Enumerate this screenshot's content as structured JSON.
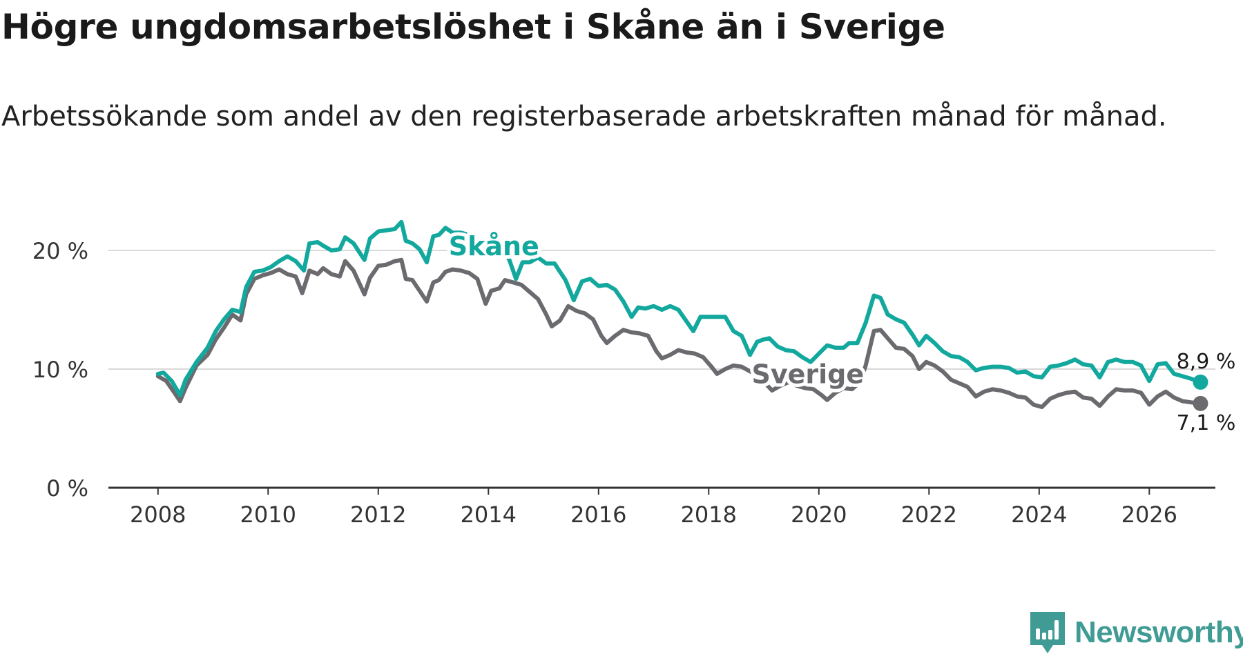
{
  "title": "Högre ungdomsarbetslöshet i Skåne än i Sverige",
  "subtitle": "Arbetssökande som andel av den registerbaserade arbetskraften månad för månad.",
  "brand": {
    "name": "Newsworthy",
    "color": "#3f9b94",
    "icon": "newsworthy-logo-icon"
  },
  "chart_data": {
    "type": "line",
    "title": "Högre ungdomsarbetslöshet i Skåne än i Sverige",
    "xlabel": "",
    "ylabel": "",
    "xlim": [
      2007.1,
      2027.2
    ],
    "ylim": [
      0,
      22.5
    ],
    "x_ticks": [
      2008,
      2010,
      2012,
      2014,
      2016,
      2018,
      2020,
      2022,
      2024,
      2026
    ],
    "x_tick_labels": [
      "2008",
      "2010",
      "2012",
      "2014",
      "2016",
      "2018",
      "2020",
      "2022",
      "2024",
      "2026"
    ],
    "y_ticks": [
      0,
      10,
      20
    ],
    "y_tick_labels": [
      "0 %",
      "10 %",
      "20 %"
    ],
    "grid": true,
    "series": [
      {
        "name": "Skåne",
        "color": "#13a89e",
        "label_x": 2014.1,
        "label_y": 20.3,
        "end_label": "8,9 %",
        "points": [
          [
            2008.0,
            9.6
          ],
          [
            2008.1,
            9.7
          ],
          [
            2008.25,
            9.0
          ],
          [
            2008.4,
            7.8
          ],
          [
            2008.5,
            9.1
          ],
          [
            2008.7,
            10.6
          ],
          [
            2008.9,
            11.8
          ],
          [
            2009.05,
            13.2
          ],
          [
            2009.2,
            14.2
          ],
          [
            2009.35,
            15.0
          ],
          [
            2009.5,
            14.8
          ],
          [
            2009.6,
            16.9
          ],
          [
            2009.75,
            18.2
          ],
          [
            2009.9,
            18.3
          ],
          [
            2010.05,
            18.6
          ],
          [
            2010.2,
            19.1
          ],
          [
            2010.35,
            19.5
          ],
          [
            2010.5,
            19.1
          ],
          [
            2010.65,
            18.3
          ],
          [
            2010.75,
            20.6
          ],
          [
            2010.9,
            20.7
          ],
          [
            2011.0,
            20.4
          ],
          [
            2011.15,
            20.0
          ],
          [
            2011.3,
            20.1
          ],
          [
            2011.4,
            21.1
          ],
          [
            2011.55,
            20.6
          ],
          [
            2011.75,
            19.2
          ],
          [
            2011.85,
            21.0
          ],
          [
            2012.0,
            21.6
          ],
          [
            2012.15,
            21.7
          ],
          [
            2012.3,
            21.8
          ],
          [
            2012.42,
            22.4
          ],
          [
            2012.5,
            20.8
          ],
          [
            2012.62,
            20.6
          ],
          [
            2012.75,
            20.1
          ],
          [
            2012.88,
            19.0
          ],
          [
            2013.0,
            21.2
          ],
          [
            2013.1,
            21.3
          ],
          [
            2013.22,
            21.9
          ],
          [
            2013.35,
            21.5
          ],
          [
            2013.5,
            21.5
          ],
          [
            2013.65,
            21.3
          ],
          [
            2013.8,
            20.9
          ],
          [
            2013.95,
            19.6
          ],
          [
            2014.1,
            20.0
          ],
          [
            2014.25,
            20.3
          ],
          [
            2014.38,
            19.2
          ],
          [
            2014.5,
            17.6
          ],
          [
            2014.62,
            19.0
          ],
          [
            2014.75,
            19.0
          ],
          [
            2014.9,
            19.4
          ],
          [
            2015.05,
            18.9
          ],
          [
            2015.2,
            18.9
          ],
          [
            2015.4,
            17.5
          ],
          [
            2015.55,
            15.8
          ],
          [
            2015.7,
            17.4
          ],
          [
            2015.85,
            17.6
          ],
          [
            2016.0,
            17.0
          ],
          [
            2016.15,
            17.1
          ],
          [
            2016.3,
            16.7
          ],
          [
            2016.45,
            15.7
          ],
          [
            2016.6,
            14.4
          ],
          [
            2016.72,
            15.2
          ],
          [
            2016.85,
            15.1
          ],
          [
            2017.0,
            15.3
          ],
          [
            2017.15,
            15.0
          ],
          [
            2017.3,
            15.3
          ],
          [
            2017.45,
            15.0
          ],
          [
            2017.6,
            14.0
          ],
          [
            2017.72,
            13.2
          ],
          [
            2017.85,
            14.4
          ],
          [
            2018.0,
            14.4
          ],
          [
            2018.15,
            14.4
          ],
          [
            2018.3,
            14.4
          ],
          [
            2018.45,
            13.2
          ],
          [
            2018.6,
            12.8
          ],
          [
            2018.75,
            11.2
          ],
          [
            2018.88,
            12.3
          ],
          [
            2019.0,
            12.5
          ],
          [
            2019.1,
            12.6
          ],
          [
            2019.25,
            11.9
          ],
          [
            2019.4,
            11.6
          ],
          [
            2019.55,
            11.5
          ],
          [
            2019.7,
            11.0
          ],
          [
            2019.85,
            10.6
          ],
          [
            2020.0,
            11.3
          ],
          [
            2020.15,
            12.0
          ],
          [
            2020.3,
            11.8
          ],
          [
            2020.45,
            11.8
          ],
          [
            2020.55,
            12.2
          ],
          [
            2020.7,
            12.2
          ],
          [
            2020.85,
            13.9
          ],
          [
            2021.0,
            16.2
          ],
          [
            2021.12,
            16.0
          ],
          [
            2021.25,
            14.6
          ],
          [
            2021.4,
            14.2
          ],
          [
            2021.55,
            13.9
          ],
          [
            2021.7,
            12.9
          ],
          [
            2021.82,
            12.0
          ],
          [
            2021.95,
            12.8
          ],
          [
            2022.1,
            12.2
          ],
          [
            2022.25,
            11.5
          ],
          [
            2022.4,
            11.1
          ],
          [
            2022.55,
            11.0
          ],
          [
            2022.7,
            10.6
          ],
          [
            2022.85,
            9.9
          ],
          [
            2023.0,
            10.1
          ],
          [
            2023.15,
            10.2
          ],
          [
            2023.3,
            10.2
          ],
          [
            2023.45,
            10.1
          ],
          [
            2023.6,
            9.7
          ],
          [
            2023.75,
            9.8
          ],
          [
            2023.9,
            9.4
          ],
          [
            2024.05,
            9.3
          ],
          [
            2024.2,
            10.2
          ],
          [
            2024.35,
            10.3
          ],
          [
            2024.5,
            10.5
          ],
          [
            2024.65,
            10.8
          ],
          [
            2024.8,
            10.4
          ],
          [
            2024.95,
            10.3
          ],
          [
            2025.1,
            9.3
          ],
          [
            2025.25,
            10.6
          ],
          [
            2025.4,
            10.8
          ],
          [
            2025.55,
            10.6
          ],
          [
            2025.7,
            10.6
          ],
          [
            2025.85,
            10.3
          ],
          [
            2026.0,
            9.0
          ],
          [
            2026.15,
            10.4
          ],
          [
            2026.3,
            10.5
          ],
          [
            2026.45,
            9.6
          ],
          [
            2026.6,
            9.4
          ],
          [
            2026.75,
            9.2
          ],
          [
            2026.93,
            8.9
          ]
        ]
      },
      {
        "name": "Sverige",
        "color": "#6b6b6f",
        "label_x": 2019.8,
        "label_y": 9.5,
        "end_label": "7,1 %",
        "points": [
          [
            2008.0,
            9.4
          ],
          [
            2008.15,
            9.0
          ],
          [
            2008.3,
            8.0
          ],
          [
            2008.4,
            7.3
          ],
          [
            2008.5,
            8.4
          ],
          [
            2008.7,
            10.3
          ],
          [
            2008.9,
            11.2
          ],
          [
            2009.05,
            12.5
          ],
          [
            2009.2,
            13.5
          ],
          [
            2009.35,
            14.6
          ],
          [
            2009.5,
            14.1
          ],
          [
            2009.6,
            16.3
          ],
          [
            2009.75,
            17.6
          ],
          [
            2009.9,
            17.9
          ],
          [
            2010.05,
            18.1
          ],
          [
            2010.2,
            18.4
          ],
          [
            2010.35,
            18.0
          ],
          [
            2010.5,
            17.8
          ],
          [
            2010.62,
            16.4
          ],
          [
            2010.75,
            18.3
          ],
          [
            2010.9,
            18.0
          ],
          [
            2011.0,
            18.5
          ],
          [
            2011.15,
            18.0
          ],
          [
            2011.3,
            17.8
          ],
          [
            2011.4,
            19.1
          ],
          [
            2011.55,
            18.3
          ],
          [
            2011.75,
            16.3
          ],
          [
            2011.85,
            17.7
          ],
          [
            2012.0,
            18.7
          ],
          [
            2012.15,
            18.8
          ],
          [
            2012.3,
            19.1
          ],
          [
            2012.42,
            19.2
          ],
          [
            2012.5,
            17.6
          ],
          [
            2012.62,
            17.5
          ],
          [
            2012.75,
            16.6
          ],
          [
            2012.88,
            15.7
          ],
          [
            2013.0,
            17.3
          ],
          [
            2013.1,
            17.5
          ],
          [
            2013.22,
            18.2
          ],
          [
            2013.35,
            18.4
          ],
          [
            2013.5,
            18.3
          ],
          [
            2013.65,
            18.1
          ],
          [
            2013.8,
            17.6
          ],
          [
            2013.95,
            15.5
          ],
          [
            2014.05,
            16.6
          ],
          [
            2014.2,
            16.8
          ],
          [
            2014.3,
            17.5
          ],
          [
            2014.45,
            17.3
          ],
          [
            2014.6,
            17.1
          ],
          [
            2014.75,
            16.5
          ],
          [
            2014.9,
            15.9
          ],
          [
            2015.05,
            14.6
          ],
          [
            2015.15,
            13.6
          ],
          [
            2015.3,
            14.1
          ],
          [
            2015.45,
            15.3
          ],
          [
            2015.6,
            14.9
          ],
          [
            2015.75,
            14.7
          ],
          [
            2015.9,
            14.2
          ],
          [
            2016.05,
            12.8
          ],
          [
            2016.15,
            12.2
          ],
          [
            2016.3,
            12.8
          ],
          [
            2016.45,
            13.3
          ],
          [
            2016.6,
            13.1
          ],
          [
            2016.75,
            13.0
          ],
          [
            2016.9,
            12.8
          ],
          [
            2017.05,
            11.5
          ],
          [
            2017.15,
            10.9
          ],
          [
            2017.3,
            11.2
          ],
          [
            2017.45,
            11.6
          ],
          [
            2017.6,
            11.4
          ],
          [
            2017.75,
            11.3
          ],
          [
            2017.9,
            11.0
          ],
          [
            2018.05,
            10.2
          ],
          [
            2018.15,
            9.6
          ],
          [
            2018.3,
            10.0
          ],
          [
            2018.45,
            10.3
          ],
          [
            2018.6,
            10.2
          ],
          [
            2018.75,
            9.8
          ],
          [
            2018.9,
            9.5
          ],
          [
            2019.05,
            8.7
          ],
          [
            2019.15,
            8.2
          ],
          [
            2019.3,
            8.6
          ],
          [
            2019.45,
            8.9
          ],
          [
            2019.6,
            8.6
          ],
          [
            2019.75,
            8.4
          ],
          [
            2019.9,
            8.3
          ],
          [
            2020.05,
            7.8
          ],
          [
            2020.15,
            7.4
          ],
          [
            2020.3,
            8.0
          ],
          [
            2020.45,
            8.4
          ],
          [
            2020.6,
            8.3
          ],
          [
            2020.75,
            8.9
          ],
          [
            2020.85,
            10.3
          ],
          [
            2021.0,
            13.2
          ],
          [
            2021.12,
            13.3
          ],
          [
            2021.25,
            12.6
          ],
          [
            2021.4,
            11.8
          ],
          [
            2021.55,
            11.7
          ],
          [
            2021.7,
            11.1
          ],
          [
            2021.82,
            10.0
          ],
          [
            2021.95,
            10.6
          ],
          [
            2022.1,
            10.3
          ],
          [
            2022.25,
            9.8
          ],
          [
            2022.4,
            9.1
          ],
          [
            2022.55,
            8.8
          ],
          [
            2022.7,
            8.5
          ],
          [
            2022.85,
            7.7
          ],
          [
            2023.0,
            8.1
          ],
          [
            2023.15,
            8.3
          ],
          [
            2023.3,
            8.2
          ],
          [
            2023.45,
            8.0
          ],
          [
            2023.6,
            7.7
          ],
          [
            2023.75,
            7.6
          ],
          [
            2023.9,
            7.0
          ],
          [
            2024.05,
            6.8
          ],
          [
            2024.2,
            7.5
          ],
          [
            2024.35,
            7.8
          ],
          [
            2024.5,
            8.0
          ],
          [
            2024.65,
            8.1
          ],
          [
            2024.8,
            7.6
          ],
          [
            2024.95,
            7.5
          ],
          [
            2025.1,
            6.9
          ],
          [
            2025.25,
            7.7
          ],
          [
            2025.4,
            8.3
          ],
          [
            2025.55,
            8.2
          ],
          [
            2025.7,
            8.2
          ],
          [
            2025.85,
            8.0
          ],
          [
            2026.0,
            7.0
          ],
          [
            2026.15,
            7.7
          ],
          [
            2026.3,
            8.1
          ],
          [
            2026.45,
            7.6
          ],
          [
            2026.6,
            7.3
          ],
          [
            2026.75,
            7.2
          ],
          [
            2026.93,
            7.1
          ]
        ]
      }
    ]
  }
}
